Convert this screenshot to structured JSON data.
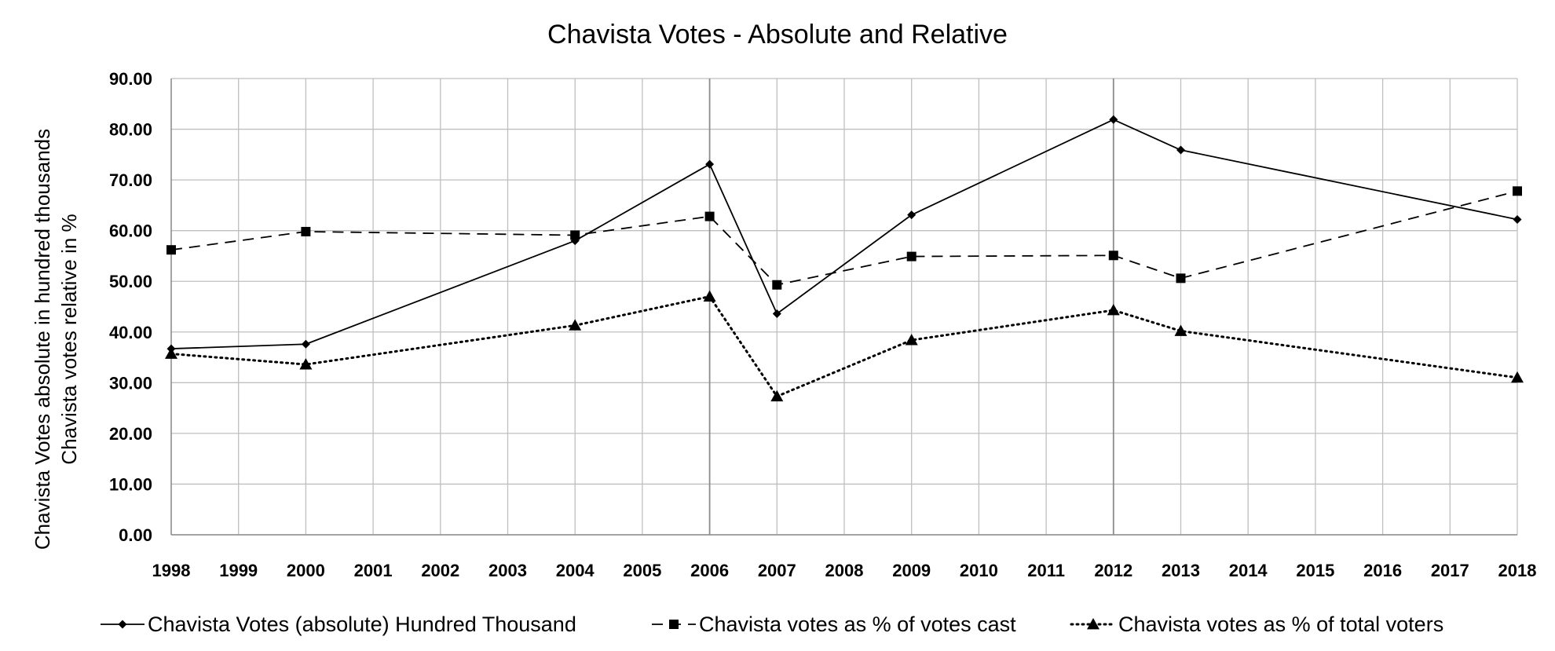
{
  "chart_data": {
    "type": "line",
    "title": "Chavista Votes - Absolute and Relative",
    "ylabel_line1": "Chavista Votes absolute in hundred thousands",
    "ylabel_line2": "Chavista votes relative in %",
    "xlabel": "",
    "x": [
      1998,
      1999,
      2000,
      2001,
      2002,
      2003,
      2004,
      2005,
      2006,
      2007,
      2008,
      2009,
      2010,
      2011,
      2012,
      2013,
      2014,
      2015,
      2016,
      2017,
      2018
    ],
    "ylim": [
      0,
      90
    ],
    "yticks": [
      "0.00",
      "10.00",
      "20.00",
      "30.00",
      "40.00",
      "50.00",
      "60.00",
      "70.00",
      "80.00",
      "90.00"
    ],
    "grid": true,
    "legend_position": "bottom",
    "series": [
      {
        "name": "Chavista Votes (absolute) Hundred Thousand",
        "style": "solid",
        "marker": "diamond",
        "points": [
          [
            1998,
            36.7
          ],
          [
            2000,
            37.6
          ],
          [
            2004,
            58.0
          ],
          [
            2006,
            73.1
          ],
          [
            2007,
            43.6
          ],
          [
            2009,
            63.1
          ],
          [
            2012,
            81.9
          ],
          [
            2013,
            75.9
          ],
          [
            2018,
            62.2
          ]
        ]
      },
      {
        "name": "Chavista votes as % of votes cast",
        "style": "dashed",
        "marker": "square",
        "points": [
          [
            1998,
            56.2
          ],
          [
            2000,
            59.8
          ],
          [
            2004,
            59.1
          ],
          [
            2006,
            62.8
          ],
          [
            2007,
            49.3
          ],
          [
            2009,
            54.9
          ],
          [
            2012,
            55.1
          ],
          [
            2013,
            50.6
          ],
          [
            2018,
            67.8
          ]
        ]
      },
      {
        "name": "Chavista votes as % of total voters",
        "style": "dotted",
        "marker": "triangle",
        "points": [
          [
            1998,
            35.7
          ],
          [
            2000,
            33.6
          ],
          [
            2004,
            41.3
          ],
          [
            2006,
            47.0
          ],
          [
            2007,
            27.3
          ],
          [
            2009,
            38.4
          ],
          [
            2012,
            44.3
          ],
          [
            2013,
            40.2
          ],
          [
            2018,
            31.0
          ]
        ]
      }
    ],
    "colors": {
      "line": "#000000",
      "grid": "#bfbfbf",
      "grid_emphasis": "#8c8c8c"
    }
  }
}
